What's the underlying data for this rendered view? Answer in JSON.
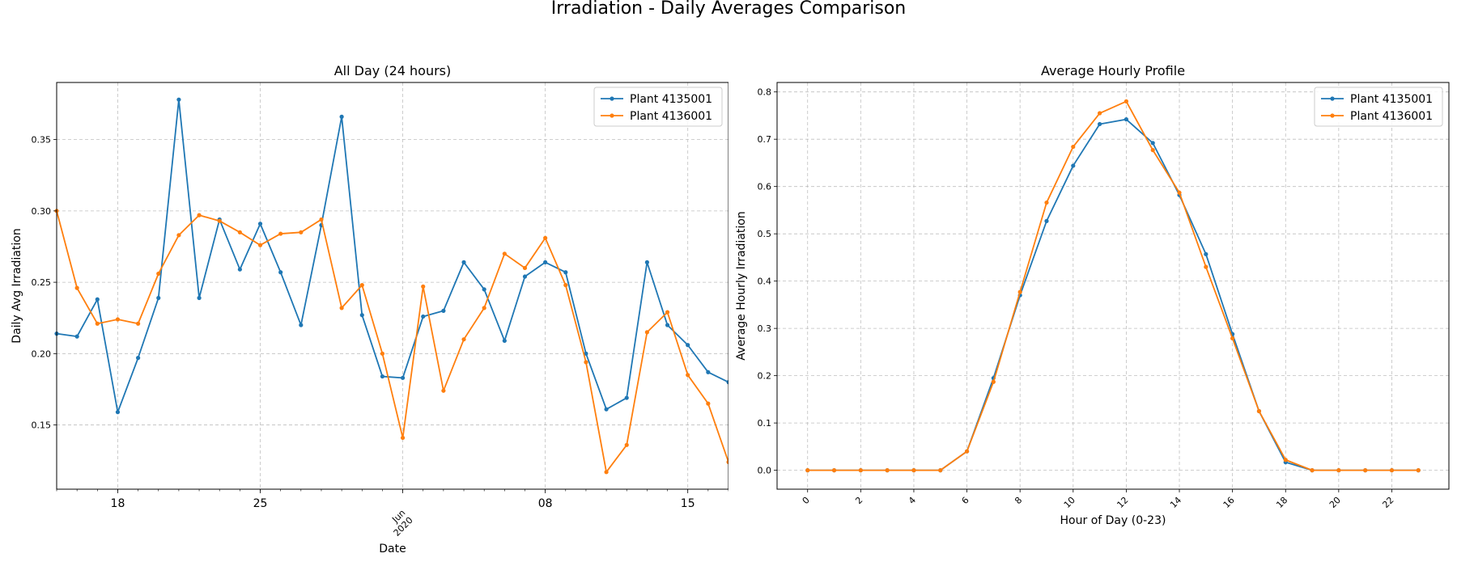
{
  "figure": {
    "title": "Irradiation - Daily Averages Comparison"
  },
  "colors": {
    "series1": "#1f77b4",
    "series2": "#ff7f0e",
    "grid": "#b0b0b0"
  },
  "chart_data": [
    {
      "type": "line",
      "title": "All Day (24 hours)",
      "xlabel": "Date",
      "ylabel": "Daily Avg Irradiation",
      "x_start": "2020-05-15",
      "x_end": "2020-06-17",
      "ylim": [
        0.105,
        0.39
      ],
      "yticks": [
        0.15,
        0.2,
        0.25,
        0.3,
        0.35
      ],
      "yticklabels": [
        "0.15",
        "0.20",
        "0.25",
        "0.30",
        "0.35"
      ],
      "xticks": [
        {
          "date": "2020-05-18",
          "label": "18"
        },
        {
          "date": "2020-05-25",
          "label": "25"
        },
        {
          "date": "2020-06-01",
          "label": "Jun",
          "sublabel": "2020"
        },
        {
          "date": "2020-06-08",
          "label": "08"
        },
        {
          "date": "2020-06-15",
          "label": "15"
        }
      ],
      "x": [
        "2020-05-15",
        "2020-05-16",
        "2020-05-17",
        "2020-05-18",
        "2020-05-19",
        "2020-05-20",
        "2020-05-21",
        "2020-05-22",
        "2020-05-23",
        "2020-05-24",
        "2020-05-25",
        "2020-05-26",
        "2020-05-27",
        "2020-05-28",
        "2020-05-29",
        "2020-05-30",
        "2020-05-31",
        "2020-06-01",
        "2020-06-02",
        "2020-06-03",
        "2020-06-04",
        "2020-06-05",
        "2020-06-06",
        "2020-06-07",
        "2020-06-08",
        "2020-06-09",
        "2020-06-10",
        "2020-06-11",
        "2020-06-12",
        "2020-06-13",
        "2020-06-14",
        "2020-06-15",
        "2020-06-16",
        "2020-06-17"
      ],
      "grid": true,
      "legend": "top-right",
      "series": [
        {
          "name": "Plant 4135001",
          "color": "#1f77b4",
          "values": [
            0.214,
            0.212,
            0.238,
            0.159,
            0.197,
            0.239,
            0.378,
            0.239,
            0.294,
            0.259,
            0.291,
            0.257,
            0.22,
            0.29,
            0.366,
            0.227,
            0.184,
            0.183,
            0.226,
            0.23,
            0.264,
            0.245,
            0.209,
            0.254,
            0.264,
            0.257,
            0.2,
            0.161,
            0.169,
            0.264,
            0.22,
            0.206,
            0.187,
            0.18
          ]
        },
        {
          "name": "Plant 4136001",
          "color": "#ff7f0e",
          "values": [
            0.3,
            0.246,
            0.221,
            0.224,
            0.221,
            0.256,
            0.283,
            0.297,
            0.293,
            0.285,
            0.276,
            0.284,
            0.285,
            0.294,
            0.232,
            0.248,
            0.2,
            0.141,
            0.247,
            0.174,
            0.21,
            0.232,
            0.27,
            0.26,
            0.281,
            0.248,
            0.194,
            0.117,
            0.136,
            0.215,
            0.229,
            0.185,
            0.165,
            0.124
          ]
        }
      ]
    },
    {
      "type": "line",
      "title": "Average Hourly Profile",
      "xlabel": "Hour of Day (0-23)",
      "ylabel": "Average Hourly Irradiation",
      "xlim": [
        -1.15,
        24.15
      ],
      "ylim": [
        -0.04,
        0.82
      ],
      "xticks": [
        0,
        2,
        4,
        6,
        8,
        10,
        12,
        14,
        16,
        18,
        20,
        22
      ],
      "yticks": [
        0.0,
        0.1,
        0.2,
        0.3,
        0.4,
        0.5,
        0.6,
        0.7,
        0.8
      ],
      "yticklabels": [
        "0.0",
        "0.1",
        "0.2",
        "0.3",
        "0.4",
        "0.5",
        "0.6",
        "0.7",
        "0.8"
      ],
      "x": [
        0,
        1,
        2,
        3,
        4,
        5,
        6,
        7,
        8,
        9,
        10,
        11,
        12,
        13,
        14,
        15,
        16,
        17,
        18,
        19,
        20,
        21,
        22,
        23
      ],
      "grid": true,
      "legend": "top-right",
      "series": [
        {
          "name": "Plant 4135001",
          "color": "#1f77b4",
          "values": [
            0,
            0,
            0,
            0,
            0,
            0,
            0.04,
            0.195,
            0.37,
            0.527,
            0.644,
            0.732,
            0.742,
            0.692,
            0.582,
            0.457,
            0.288,
            0.125,
            0.017,
            0,
            0,
            0,
            0,
            0
          ]
        },
        {
          "name": "Plant 4136001",
          "color": "#ff7f0e",
          "values": [
            0,
            0,
            0,
            0,
            0,
            0,
            0.04,
            0.187,
            0.377,
            0.566,
            0.684,
            0.755,
            0.78,
            0.677,
            0.587,
            0.43,
            0.279,
            0.125,
            0.022,
            0,
            0,
            0,
            0,
            0
          ]
        }
      ]
    }
  ]
}
